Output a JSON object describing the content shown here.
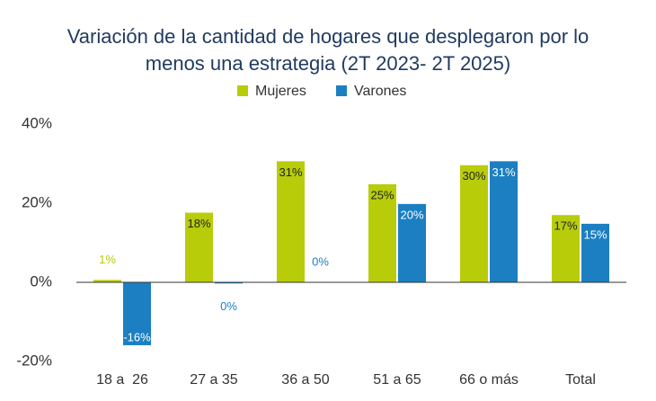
{
  "chart_data": {
    "type": "bar",
    "title": [
      "Variación de la cantidad de hogares que desplegaron por lo",
      "menos una estrategia (2T 2023- 2T 2025)"
    ],
    "categories": [
      "18 a  26",
      "27 a 35",
      "36 a 50",
      "51 a 65",
      "66 o más",
      "Total"
    ],
    "series": [
      {
        "name": "Mujeres",
        "color": "#b8cc0a",
        "values": [
          0.6,
          17.6,
          30.6,
          24.8,
          29.6,
          17.0
        ],
        "value_labels": [
          "1%",
          "18%",
          "31%",
          "25%",
          "30%",
          "17%"
        ]
      },
      {
        "name": "Varones",
        "color": "#1b7fc2",
        "values": [
          -15.9,
          -0.3,
          0,
          19.8,
          30.6,
          14.8
        ],
        "value_labels": [
          "-16%",
          "0%",
          "0%",
          "20%",
          "31%",
          "15%"
        ]
      }
    ],
    "ylim": [
      -20,
      40
    ],
    "yticks": [
      {
        "value": -20,
        "label": "-20%"
      },
      {
        "value": 0,
        "label": "0%"
      },
      {
        "value": 20,
        "label": "20%"
      },
      {
        "value": 40,
        "label": "40%"
      }
    ],
    "legend": "top"
  }
}
